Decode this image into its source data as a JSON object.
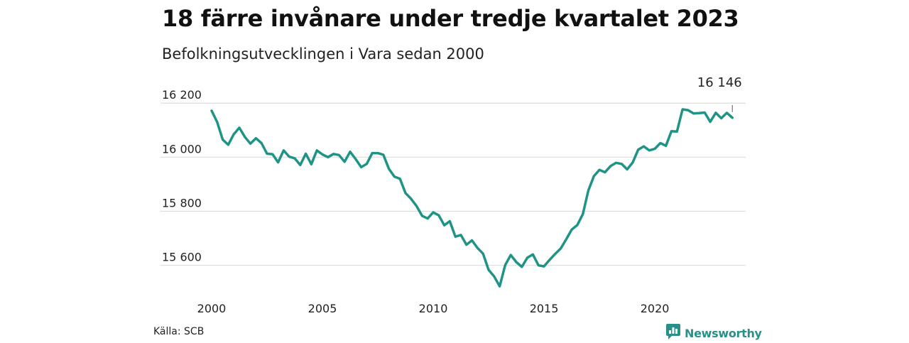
{
  "header": {
    "title": "18 färre invånare under tredje kvartalet 2023",
    "subtitle": "Befolkningsutvecklingen i Vara sedan 2000"
  },
  "footer": {
    "source": "Källa: SCB",
    "brand": "Newsworthy"
  },
  "colors": {
    "line": "#1f9486",
    "grid": "#dddddd",
    "brand": "#2a8f88"
  },
  "icons": {
    "brand_logo": "bar-chart-speech-bubble-icon"
  },
  "chart_data": {
    "type": "line",
    "title": "18 färre invånare under tredje kvartalet 2023",
    "subtitle": "Befolkningsutvecklingen i Vara sedan 2000",
    "xlabel": "",
    "ylabel": "",
    "x_ticks": [
      2000,
      2005,
      2010,
      2015,
      2020
    ],
    "x_tick_labels": [
      "2000",
      "2005",
      "2010",
      "2015",
      "2020"
    ],
    "y_ticks": [
      15600,
      15800,
      16000,
      16200
    ],
    "y_tick_labels": [
      "15 600",
      "15 800",
      "16 000",
      "16 200"
    ],
    "xlim": [
      2000,
      2024.1
    ],
    "ylim": [
      15520,
      16240
    ],
    "grid": "horizontal",
    "legend": "none",
    "end_label": "16 146",
    "series": [
      {
        "x": [
          2000.0,
          2000.25,
          2000.5,
          2000.75,
          2001.0,
          2001.25,
          2001.5,
          2001.75,
          2002.0,
          2002.25,
          2002.5,
          2002.75,
          2003.0,
          2003.25,
          2003.5,
          2003.75,
          2004.0,
          2004.25,
          2004.5,
          2004.75,
          2005.0,
          2005.25,
          2005.5,
          2005.75,
          2006.0,
          2006.25,
          2006.5,
          2006.75,
          2007.0,
          2007.25,
          2007.5,
          2007.75,
          2008.0,
          2008.25,
          2008.5,
          2008.75,
          2009.0,
          2009.25,
          2009.5,
          2009.75,
          2010.0,
          2010.25,
          2010.5,
          2010.75,
          2011.0,
          2011.25,
          2011.5,
          2011.75,
          2012.0,
          2012.25,
          2012.5,
          2012.75,
          2013.0,
          2013.25,
          2013.5,
          2013.75,
          2014.0,
          2014.25,
          2014.5,
          2014.75,
          2015.0,
          2015.25,
          2015.5,
          2015.75,
          2016.0,
          2016.25,
          2016.5,
          2016.75,
          2017.0,
          2017.25,
          2017.5,
          2017.75,
          2018.0,
          2018.25,
          2018.5,
          2018.75,
          2019.0,
          2019.25,
          2019.5,
          2019.75,
          2020.0,
          2020.25,
          2020.5,
          2020.75,
          2021.0,
          2021.25,
          2021.5,
          2021.75,
          2022.0,
          2022.25,
          2022.5,
          2022.75,
          2023.0,
          2023.25,
          2023.5
        ],
        "y": [
          16172,
          16130,
          16065,
          16046,
          16085,
          16109,
          16075,
          16050,
          16070,
          16052,
          16013,
          16011,
          15981,
          16025,
          16002,
          15996,
          15971,
          16013,
          15974,
          16025,
          16010,
          16000,
          16012,
          16008,
          15983,
          16020,
          15993,
          15963,
          15975,
          16015,
          16015,
          16009,
          15957,
          15928,
          15920,
          15867,
          15846,
          15819,
          15783,
          15773,
          15796,
          15785,
          15748,
          15763,
          15706,
          15712,
          15676,
          15692,
          15664,
          15643,
          15583,
          15559,
          15522,
          15601,
          15638,
          15612,
          15594,
          15628,
          15640,
          15600,
          15596,
          15620,
          15642,
          15662,
          15696,
          15732,
          15749,
          15789,
          15877,
          15930,
          15953,
          15944,
          15967,
          15979,
          15975,
          15955,
          15980,
          16028,
          16040,
          16025,
          16031,
          16052,
          16042,
          16096,
          16095,
          16177,
          16174,
          16162,
          16163,
          16165,
          16131,
          16164,
          16144,
          16164,
          16146
        ]
      }
    ]
  }
}
